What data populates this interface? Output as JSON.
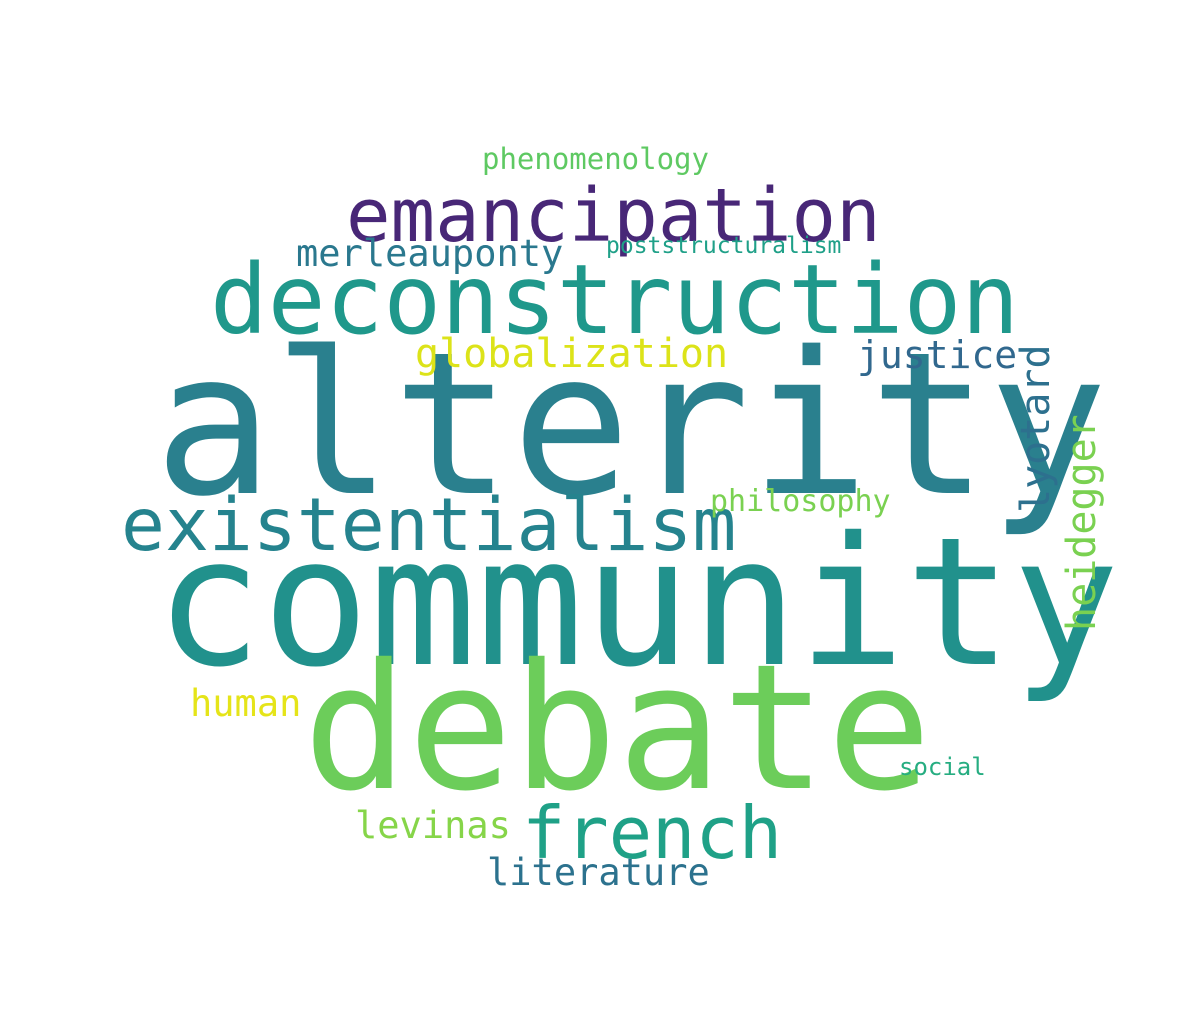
{
  "words": {
    "alterity": {
      "text": "alterity",
      "color": "#2a808e"
    },
    "community": {
      "text": "community",
      "color": "#21918c"
    },
    "debate": {
      "text": "debate",
      "color": "#6ccd5a"
    },
    "deconstruction": {
      "text": "deconstruction",
      "color": "#1f988b"
    },
    "emancipation": {
      "text": "emancipation",
      "color": "#482777"
    },
    "existentialism": {
      "text": "existentialism",
      "color": "#25838e"
    },
    "french": {
      "text": "french",
      "color": "#1fa187"
    },
    "globalization": {
      "text": "globalization",
      "color": "#dce319"
    },
    "merleauponty": {
      "text": "merleauponty",
      "color": "#2a788e"
    },
    "justice": {
      "text": "justice",
      "color": "#31688e"
    },
    "lyotard": {
      "text": "lyotard",
      "color": "#2d708e"
    },
    "heidegger": {
      "text": "heidegger",
      "color": "#7ad151"
    },
    "philosophy": {
      "text": "philosophy",
      "color": "#7ad151"
    },
    "phenomenology": {
      "text": "phenomenology",
      "color": "#5ec962"
    },
    "poststructuralism": {
      "text": "poststructuralism",
      "color": "#1fa088"
    },
    "human": {
      "text": "human",
      "color": "#e5e419"
    },
    "levinas": {
      "text": "levinas",
      "color": "#86d549"
    },
    "literature": {
      "text": "literature",
      "color": "#2c728e"
    },
    "social": {
      "text": "social",
      "color": "#26ad81"
    }
  }
}
